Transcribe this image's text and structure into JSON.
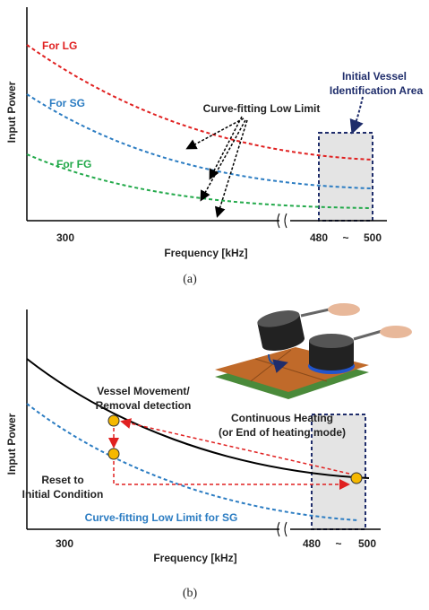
{
  "panel_a": {
    "y_axis_label": "Input Power",
    "x_axis_label": "Frequency [kHz]",
    "x_ticks": [
      "300",
      "480",
      "~",
      "500"
    ],
    "curve_labels": [
      "For LG",
      "For SG",
      "For FG"
    ],
    "annotation": "Curve-fitting Low Limit",
    "area_label": [
      "Initial Vessel",
      "Identification Area"
    ],
    "caption": "(a)"
  },
  "panel_b": {
    "y_axis_label": "Input Power",
    "x_axis_label": "Frequency [kHz]",
    "x_ticks": [
      "300",
      "480",
      "~",
      "500"
    ],
    "detection_label": [
      "Vessel Movement/",
      "Removal detection"
    ],
    "heating_label": [
      "Continuous Heating",
      "(or End of heating mode)"
    ],
    "reset_label": [
      "Reset to",
      "Initial Condition"
    ],
    "curve_label": "Curve-fitting Low Limit for SG",
    "caption": "(b)"
  }
}
